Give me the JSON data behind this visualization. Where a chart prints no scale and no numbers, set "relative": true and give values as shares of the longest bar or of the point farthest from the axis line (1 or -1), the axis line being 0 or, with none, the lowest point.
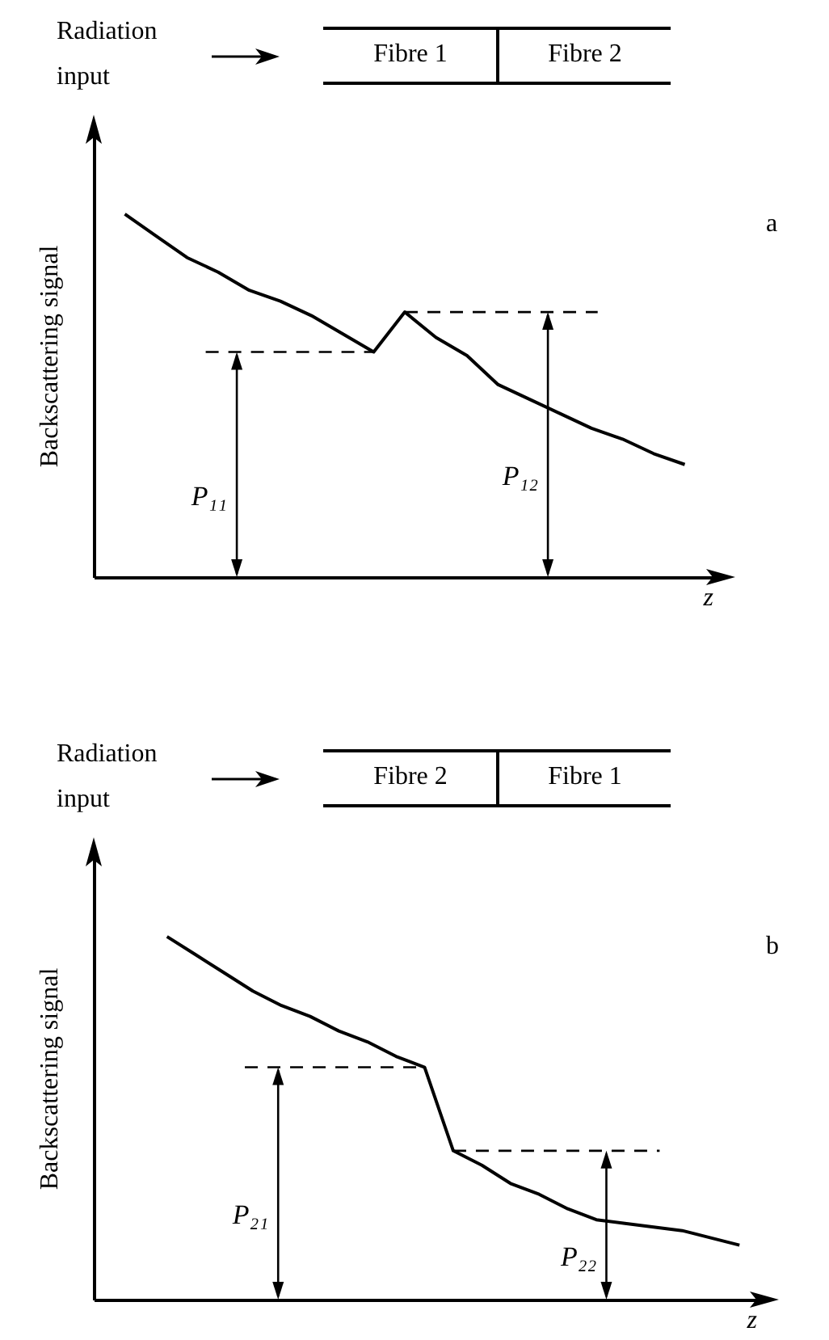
{
  "chart_data": [
    {
      "type": "line",
      "relative": true,
      "xlabel": "z",
      "ylabel": "Backscattering signal",
      "grid": false,
      "categories": [
        null,
        null,
        null,
        null,
        null,
        null,
        null,
        null,
        null,
        null,
        null,
        null,
        null,
        null,
        null,
        null,
        null,
        null,
        null
      ],
      "series": [
        {
          "color": "#000000",
          "values": [
            1,
            0.94,
            0.88,
            0.84,
            0.79,
            0.76,
            0.72,
            0.67,
            0.62,
            0.73,
            0.66,
            0.61,
            0.53,
            0.49,
            0.45,
            0.41,
            0.38,
            0.34,
            0.31
          ]
        }
      ],
      "ref_lines": [
        {
          "axis": "y",
          "value": 0.62,
          "line_style": "dashed",
          "color": "#000000"
        },
        {
          "axis": "y",
          "value": 0.73,
          "line_style": "dashed",
          "color": "#000000"
        }
      ],
      "annotations": [
        "Radiation input",
        "Fibre 1",
        "Fibre 2",
        "a",
        "P₁₁",
        "P₁₂"
      ]
    },
    {
      "type": "line",
      "relative": true,
      "xlabel": "z",
      "ylabel": "Backscattering signal",
      "grid": false,
      "categories": [
        null,
        null,
        null,
        null,
        null,
        null,
        null,
        null,
        null,
        null,
        null,
        null,
        null,
        null,
        null,
        null,
        null,
        null,
        null,
        null,
        null
      ],
      "series": [
        {
          "color": "#000000",
          "values": [
            1,
            0.95,
            0.9,
            0.85,
            0.81,
            0.78,
            0.74,
            0.71,
            0.67,
            0.64,
            0.41,
            0.37,
            0.32,
            0.29,
            0.25,
            0.22,
            0.21,
            0.2,
            0.19,
            0.17,
            0.15
          ]
        }
      ],
      "ref_lines": [
        {
          "axis": "y",
          "value": 0.64,
          "line_style": "dashed",
          "color": "#000000"
        },
        {
          "axis": "y",
          "value": 0.41,
          "line_style": "dashed",
          "color": "#000000"
        }
      ],
      "annotations": [
        "Radiation input",
        "Fibre 2",
        "Fibre 1",
        "b",
        "P₂₁",
        "P₂₂"
      ]
    }
  ]
}
